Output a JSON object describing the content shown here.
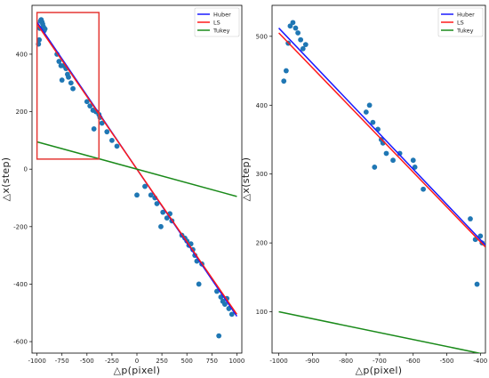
{
  "chart_data": [
    {
      "type": "scatter",
      "xlabel": "△p(pixel)",
      "ylabel": "△x(step)",
      "xlim": [
        -1050,
        1050
      ],
      "ylim": [
        -640,
        570
      ],
      "xticks": [
        -1000,
        -750,
        -500,
        -250,
        0,
        250,
        500,
        750,
        1000
      ],
      "yticks": [
        -600,
        -400,
        -200,
        0,
        200,
        400
      ],
      "grid": false,
      "legend": [
        "Huber",
        "LS",
        "Tukey"
      ],
      "legend_position": "top-right",
      "highlight_box": {
        "x": [
          -1000,
          -380
        ],
        "y": [
          35,
          545
        ],
        "color": "#e53935"
      },
      "points": [
        [
          -985,
          435
        ],
        [
          -978,
          450
        ],
        [
          -972,
          490
        ],
        [
          -966,
          515
        ],
        [
          -958,
          520
        ],
        [
          -950,
          512
        ],
        [
          -943,
          505
        ],
        [
          -935,
          495
        ],
        [
          -928,
          482
        ],
        [
          -920,
          488
        ],
        [
          -800,
          400
        ],
        [
          -780,
          375
        ],
        [
          -760,
          360
        ],
        [
          -750,
          310
        ],
        [
          -735,
          360
        ],
        [
          -710,
          350
        ],
        [
          -695,
          330
        ],
        [
          -685,
          320
        ],
        [
          -660,
          300
        ],
        [
          -640,
          280
        ],
        [
          -500,
          235
        ],
        [
          -470,
          220
        ],
        [
          -440,
          205
        ],
        [
          -430,
          140
        ],
        [
          -410,
          200
        ],
        [
          -380,
          190
        ],
        [
          -370,
          180
        ],
        [
          -350,
          160
        ],
        [
          -300,
          130
        ],
        [
          -250,
          100
        ],
        [
          -200,
          80
        ],
        [
          0,
          -90
        ],
        [
          80,
          -60
        ],
        [
          140,
          -90
        ],
        [
          180,
          -100
        ],
        [
          200,
          -120
        ],
        [
          240,
          -200
        ],
        [
          260,
          -150
        ],
        [
          300,
          -170
        ],
        [
          330,
          -155
        ],
        [
          350,
          -180
        ],
        [
          450,
          -230
        ],
        [
          480,
          -240
        ],
        [
          500,
          -250
        ],
        [
          520,
          -265
        ],
        [
          540,
          -260
        ],
        [
          560,
          -280
        ],
        [
          580,
          -300
        ],
        [
          600,
          -320
        ],
        [
          620,
          -400
        ],
        [
          650,
          -330
        ],
        [
          800,
          -425
        ],
        [
          820,
          -580
        ],
        [
          840,
          -445
        ],
        [
          860,
          -460
        ],
        [
          880,
          -470
        ],
        [
          900,
          -450
        ],
        [
          920,
          -485
        ],
        [
          950,
          -505
        ]
      ],
      "point_color": "#1f77b4",
      "series": [
        {
          "name": "Huber",
          "color": "#1a1aff",
          "x": [
            -1000,
            1000
          ],
          "y": [
            512,
            -512
          ]
        },
        {
          "name": "LS",
          "color": "#ff1a1a",
          "x": [
            -1000,
            1000
          ],
          "y": [
            505,
            -505
          ]
        },
        {
          "name": "Tukey",
          "color": "#1a8a1a",
          "x": [
            -1000,
            1000
          ],
          "y": [
            95,
            -95
          ]
        }
      ]
    },
    {
      "type": "scatter",
      "xlabel": "△p(pixel)",
      "ylabel": "△x(step)",
      "xlim": [
        -1020,
        -385
      ],
      "ylim": [
        40,
        545
      ],
      "xticks": [
        -1000,
        -900,
        -800,
        -700,
        -600,
        -500,
        -400
      ],
      "yticks": [
        100,
        200,
        300,
        400,
        500
      ],
      "grid": false,
      "legend": [
        "Huber",
        "LS",
        "Tukey"
      ],
      "legend_position": "top-right",
      "points": [
        [
          -985,
          435
        ],
        [
          -978,
          450
        ],
        [
          -972,
          490
        ],
        [
          -966,
          515
        ],
        [
          -958,
          520
        ],
        [
          -950,
          512
        ],
        [
          -943,
          505
        ],
        [
          -935,
          495
        ],
        [
          -928,
          482
        ],
        [
          -920,
          488
        ],
        [
          -740,
          390
        ],
        [
          -730,
          400
        ],
        [
          -720,
          375
        ],
        [
          -715,
          310
        ],
        [
          -705,
          365
        ],
        [
          -695,
          350
        ],
        [
          -690,
          345
        ],
        [
          -680,
          330
        ],
        [
          -660,
          320
        ],
        [
          -640,
          330
        ],
        [
          -600,
          320
        ],
        [
          -595,
          310
        ],
        [
          -570,
          278
        ],
        [
          -430,
          235
        ],
        [
          -415,
          205
        ],
        [
          -410,
          140
        ],
        [
          -400,
          210
        ],
        [
          -395,
          200
        ]
      ],
      "point_color": "#1f77b4",
      "series": [
        {
          "name": "Huber",
          "color": "#1a1aff",
          "x": [
            -1000,
            -385
          ],
          "y": [
            512,
            197
          ]
        },
        {
          "name": "LS",
          "color": "#ff1a1a",
          "x": [
            -1000,
            -385
          ],
          "y": [
            505,
            194
          ]
        },
        {
          "name": "Tukey",
          "color": "#1a8a1a",
          "x": [
            -1000,
            -385
          ],
          "y": [
            100,
            38
          ]
        }
      ]
    }
  ]
}
